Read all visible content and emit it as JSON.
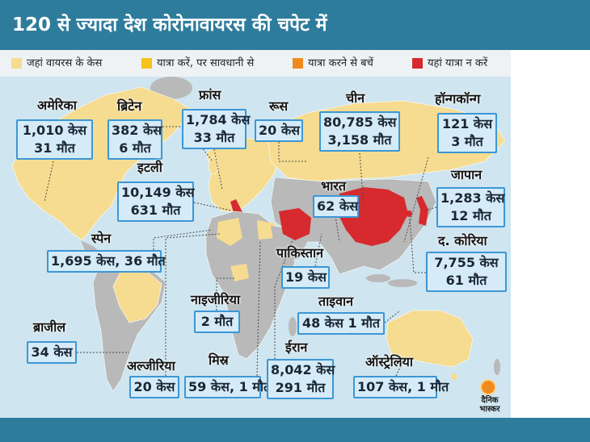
{
  "title": "120 से ज्यादा देश कोरोनावायरस की चपेट में",
  "legend": [
    {
      "label": "जहां वायरस के केस",
      "color": "#f6dc90"
    },
    {
      "label": "यात्रा करें, पर सावधानी से",
      "color": "#f6c21c"
    },
    {
      "label": "यात्रा करने से बचें",
      "color": "#ef8a1f"
    },
    {
      "label": "यहां यात्रा न करें",
      "color": "#d72a2e"
    }
  ],
  "countries": {
    "usa": {
      "name": "अमेरिका",
      "line1": "1,010 केस",
      "line2": "31 मौत"
    },
    "uk": {
      "name": "ब्रिटेन",
      "line1": "382 केस",
      "line2": "6 मौत"
    },
    "france": {
      "name": "फ्रांस",
      "line1": "1,784 केस",
      "line2": "33 मौत"
    },
    "russia": {
      "name": "रूस",
      "line1": "20 केस"
    },
    "china": {
      "name": "चीन",
      "line1": "80,785 केस",
      "line2": "3,158 मौत"
    },
    "hongkong": {
      "name": "हॉन्गकॉन्ग",
      "line1": "121 केस",
      "line2": "3 मौत"
    },
    "italy": {
      "name": "इटली",
      "line1": "10,149 केस",
      "line2": "631 मौत"
    },
    "india": {
      "name": "भारत",
      "line1": "62 केस"
    },
    "japan": {
      "name": "जापान",
      "line1": "1,283 केस",
      "line2": "12 मौत"
    },
    "spain": {
      "name": "स्पेन",
      "line1": "1,695 केस, 36 मौत"
    },
    "pakistan": {
      "name": "पाकिस्तान",
      "line1": "19 केस"
    },
    "south_korea": {
      "name": "द. कोरिया",
      "line1": "7,755 केस",
      "line2": "61 मौत"
    },
    "nigeria": {
      "name": "नाइजीरिया",
      "line1": "2 मौत"
    },
    "taiwan": {
      "name": "ताइवान",
      "line1": "48 केस 1 मौत"
    },
    "brazil": {
      "name": "ब्राजील",
      "line1": "34 केस"
    },
    "algeria": {
      "name": "अल्जीरिया",
      "line1": "20 केस"
    },
    "egypt": {
      "name": "मिस्र",
      "line1": "59 केस, 1 मौत"
    },
    "iran": {
      "name": "ईरान",
      "line1": "8,042 केस",
      "line2": "291 मौत"
    },
    "australia": {
      "name": "ऑस्ट्रेलिया",
      "line1": "107 केस, 1 मौत"
    }
  },
  "logo": {
    "line1": "दैनिक",
    "line2": "भास्कर"
  },
  "colors": {
    "header": "#2e7c9c",
    "ocean": "#cfe5ef",
    "land": "#b9b9b9",
    "box_fill": "#d5ebf8",
    "box_border": "#3b97d5"
  }
}
